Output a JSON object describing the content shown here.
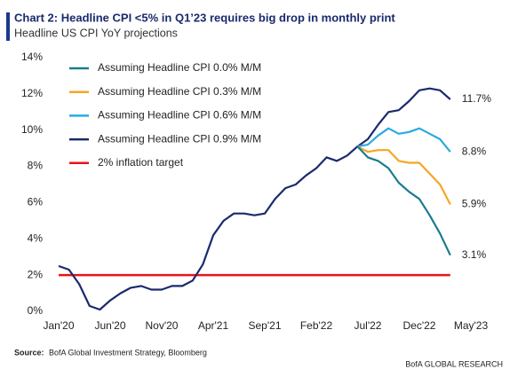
{
  "chart_data": {
    "type": "line",
    "title": "Chart 2: Headline CPI <5% in Q1’23 requires big drop in monthly print",
    "subtitle": "Headline US CPI YoY projections",
    "source_label": "Source:",
    "source": "BofA Global Investment Strategy, Bloomberg",
    "footer": "BofA GLOBAL RESEARCH",
    "categories": [
      "Jan'20",
      null,
      null,
      null,
      null,
      "Jun'20",
      null,
      null,
      null,
      null,
      "Nov'20",
      null,
      null,
      null,
      null,
      "Apr'21",
      null,
      null,
      null,
      null,
      "Sep'21",
      null,
      null,
      null,
      null,
      "Feb'22",
      null,
      null,
      null,
      null,
      "Jul'22",
      null,
      null,
      null,
      null,
      "Dec'22",
      null,
      null,
      null,
      null,
      "May'23"
    ],
    "ylim": [
      0,
      14
    ],
    "yticks": [
      {
        "value": 0,
        "label": "0%"
      },
      {
        "value": 2,
        "label": "2%"
      },
      {
        "value": 4,
        "label": "4%"
      },
      {
        "value": 6,
        "label": "6%"
      },
      {
        "value": 8,
        "label": "8%"
      },
      {
        "value": 10,
        "label": "10%"
      },
      {
        "value": 12,
        "label": "12%"
      },
      {
        "value": 14,
        "label": "14%"
      }
    ],
    "grid": false,
    "legend": "upper left",
    "label_color": "#e8141c",
    "series": [
      {
        "name": "Assuming Headline CPI 0.0% M/M",
        "color": "#1b7b8f",
        "values": [
          null,
          null,
          null,
          null,
          null,
          null,
          null,
          null,
          null,
          null,
          null,
          null,
          null,
          null,
          null,
          null,
          null,
          null,
          null,
          null,
          null,
          null,
          null,
          null,
          null,
          null,
          null,
          null,
          null,
          9.1,
          8.5,
          8.3,
          7.9,
          7.1,
          6.6,
          6.2,
          5.3,
          4.3,
          3.1,
          null,
          null
        ],
        "value_labels": [
          null,
          null,
          null,
          null,
          null,
          null,
          null,
          null,
          null,
          null,
          null,
          null,
          null,
          null,
          null,
          null,
          null,
          null,
          null,
          null,
          null,
          null,
          null,
          null,
          null,
          null,
          null,
          null,
          null,
          null,
          null,
          null,
          null,
          null,
          null,
          null,
          null,
          null,
          "3.1%",
          null,
          null
        ]
      },
      {
        "name": "Assuming Headline CPI 0.3% M/M",
        "color": "#f5a623",
        "values": [
          null,
          null,
          null,
          null,
          null,
          null,
          null,
          null,
          null,
          null,
          null,
          null,
          null,
          null,
          null,
          null,
          null,
          null,
          null,
          null,
          null,
          null,
          null,
          null,
          null,
          null,
          null,
          null,
          null,
          9.1,
          8.8,
          8.9,
          8.9,
          8.3,
          8.2,
          8.2,
          7.6,
          7.0,
          5.9,
          null,
          null
        ],
        "value_labels": [
          null,
          null,
          null,
          null,
          null,
          null,
          null,
          null,
          null,
          null,
          null,
          null,
          null,
          null,
          null,
          null,
          null,
          null,
          null,
          null,
          null,
          null,
          null,
          null,
          null,
          null,
          null,
          null,
          null,
          null,
          null,
          null,
          null,
          null,
          null,
          null,
          null,
          null,
          "5.9%",
          null,
          null
        ]
      },
      {
        "name": "Assuming Headline CPI 0.6% M/M",
        "color": "#2ba9e1",
        "values": [
          null,
          null,
          null,
          null,
          null,
          null,
          null,
          null,
          null,
          null,
          null,
          null,
          null,
          null,
          null,
          null,
          null,
          null,
          null,
          null,
          null,
          null,
          null,
          null,
          null,
          null,
          null,
          null,
          null,
          9.1,
          9.2,
          9.7,
          10.1,
          9.8,
          9.9,
          10.1,
          9.8,
          9.5,
          8.8,
          null,
          null
        ],
        "value_labels": [
          null,
          null,
          null,
          null,
          null,
          null,
          null,
          null,
          null,
          null,
          null,
          null,
          null,
          null,
          null,
          null,
          null,
          null,
          null,
          null,
          null,
          null,
          null,
          null,
          null,
          null,
          null,
          null,
          null,
          null,
          null,
          null,
          null,
          null,
          null,
          null,
          null,
          null,
          "8.8%",
          null,
          null
        ]
      },
      {
        "name": "Assuming Headline CPI 0.9% M/M",
        "color": "#1a2a6c",
        "values": [
          2.5,
          2.3,
          1.5,
          0.3,
          0.1,
          0.6,
          1.0,
          1.3,
          1.4,
          1.2,
          1.2,
          1.4,
          1.4,
          1.7,
          2.6,
          4.2,
          5.0,
          5.4,
          5.4,
          5.3,
          5.4,
          6.2,
          6.8,
          7.0,
          7.5,
          7.9,
          8.5,
          8.3,
          8.6,
          9.1,
          9.5,
          10.3,
          11.0,
          11.1,
          11.6,
          12.2,
          12.3,
          12.2,
          11.7,
          null,
          null
        ],
        "value_labels": [
          null,
          null,
          null,
          null,
          null,
          null,
          null,
          null,
          null,
          null,
          null,
          null,
          null,
          null,
          null,
          null,
          null,
          null,
          null,
          null,
          null,
          null,
          null,
          null,
          null,
          null,
          null,
          null,
          null,
          null,
          null,
          null,
          null,
          null,
          null,
          null,
          null,
          null,
          "11.7%",
          null,
          null
        ]
      },
      {
        "name": "2% inflation target",
        "color": "#e8141c",
        "values": [
          2,
          2,
          2,
          2,
          2,
          2,
          2,
          2,
          2,
          2,
          2,
          2,
          2,
          2,
          2,
          2,
          2,
          2,
          2,
          2,
          2,
          2,
          2,
          2,
          2,
          2,
          2,
          2,
          2,
          2,
          2,
          2,
          2,
          2,
          2,
          2,
          2,
          2,
          2,
          null,
          null
        ]
      }
    ]
  }
}
